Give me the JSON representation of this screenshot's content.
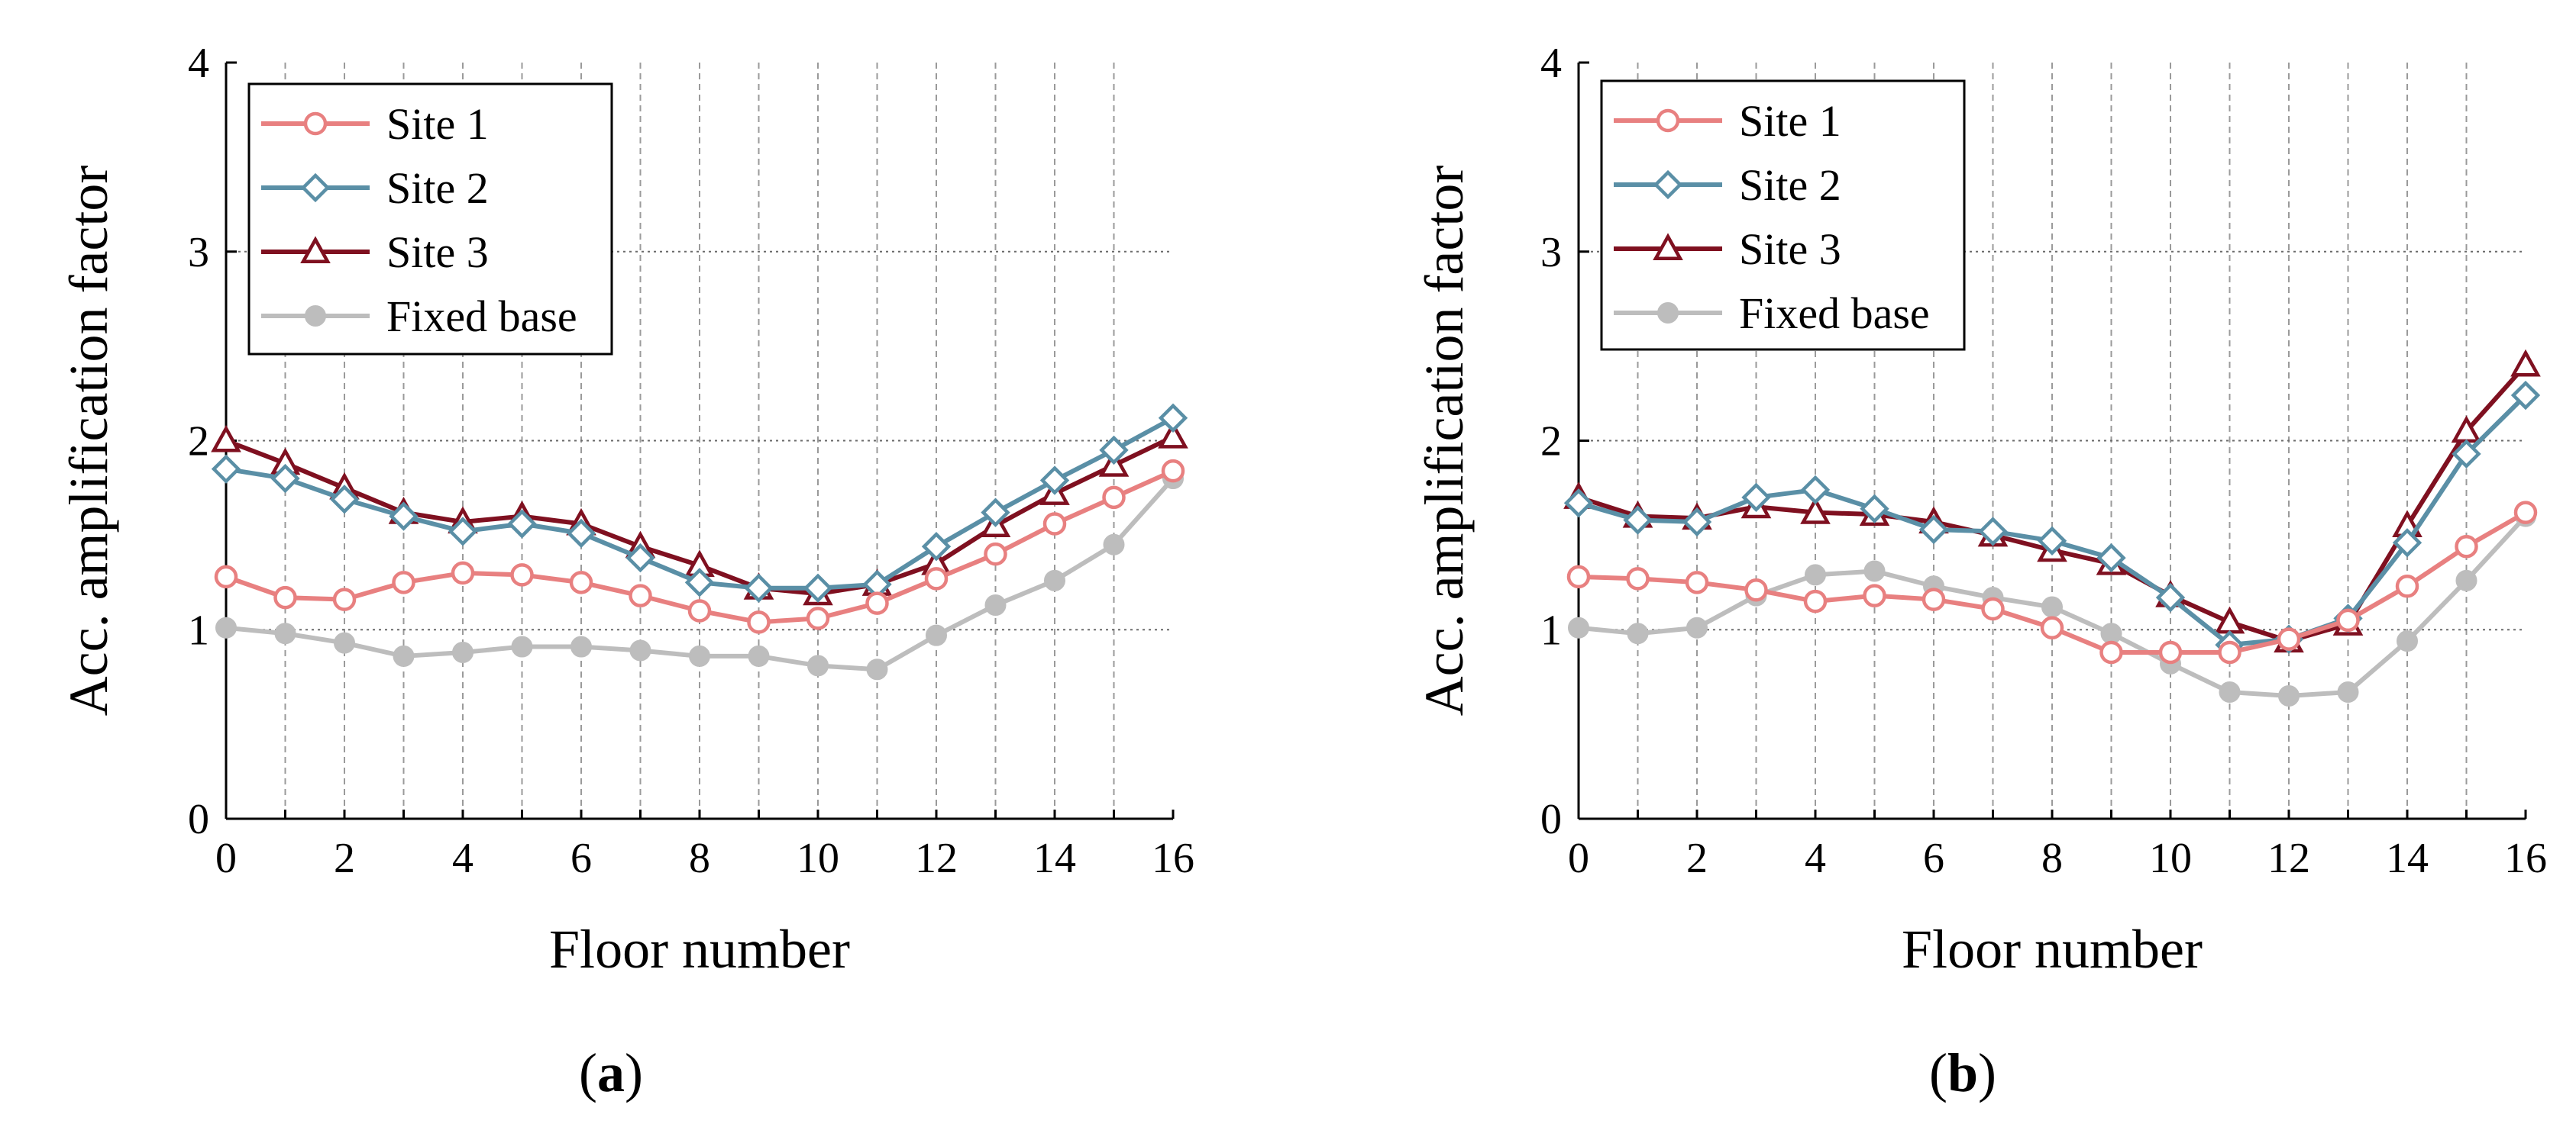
{
  "chart_data": [
    {
      "type": "line",
      "panel_label": "(a)",
      "title": "",
      "xlabel": "Floor number",
      "ylabel": "Acc. amplification factor",
      "xlim": [
        0,
        16
      ],
      "ylim": [
        0,
        4
      ],
      "xticks": [
        0,
        2,
        4,
        6,
        8,
        10,
        12,
        14,
        16
      ],
      "yticks": [
        0,
        1,
        2,
        3,
        4
      ],
      "grid": true,
      "legend_position": "top-left",
      "x": [
        0,
        1,
        2,
        3,
        4,
        5,
        6,
        7,
        8,
        9,
        10,
        11,
        12,
        13,
        14,
        15,
        16
      ],
      "series": [
        {
          "name": "Site 1",
          "color": "#E88080",
          "marker": "circle-open",
          "values": [
            1.28,
            1.17,
            1.16,
            1.25,
            1.3,
            1.29,
            1.25,
            1.18,
            1.1,
            1.04,
            1.06,
            1.14,
            1.27,
            1.4,
            1.56,
            1.7,
            1.84
          ]
        },
        {
          "name": "Site 2",
          "color": "#5A8FA6",
          "marker": "diamond-open",
          "values": [
            1.85,
            1.8,
            1.69,
            1.6,
            1.52,
            1.56,
            1.51,
            1.38,
            1.25,
            1.22,
            1.22,
            1.24,
            1.44,
            1.62,
            1.79,
            1.95,
            2.12
          ]
        },
        {
          "name": "Site 3",
          "color": "#7F1020",
          "marker": "triangle-open",
          "values": [
            2.0,
            1.88,
            1.75,
            1.62,
            1.57,
            1.6,
            1.56,
            1.44,
            1.34,
            1.22,
            1.19,
            1.24,
            1.35,
            1.55,
            1.72,
            1.87,
            2.02
          ]
        },
        {
          "name": "Fixed base",
          "color": "#BDBDBD",
          "marker": "circle-filled",
          "values": [
            1.01,
            0.98,
            0.93,
            0.86,
            0.88,
            0.91,
            0.91,
            0.89,
            0.86,
            0.86,
            0.81,
            0.79,
            0.97,
            1.13,
            1.26,
            1.45,
            1.8
          ]
        }
      ]
    },
    {
      "type": "line",
      "panel_label": "(b)",
      "title": "",
      "xlabel": "Floor number",
      "ylabel": "Acc. amplification factor",
      "xlim": [
        0,
        16
      ],
      "ylim": [
        0,
        4
      ],
      "xticks": [
        0,
        2,
        4,
        6,
        8,
        10,
        12,
        14,
        16
      ],
      "yticks": [
        0,
        1,
        2,
        3,
        4
      ],
      "grid": true,
      "legend_position": "top-left",
      "x": [
        0,
        1,
        2,
        3,
        4,
        5,
        6,
        7,
        8,
        9,
        10,
        11,
        12,
        13,
        14,
        15,
        16
      ],
      "series": [
        {
          "name": "Site 1",
          "color": "#E88080",
          "marker": "circle-open",
          "values": [
            1.28,
            1.27,
            1.25,
            1.21,
            1.15,
            1.18,
            1.16,
            1.11,
            1.01,
            0.88,
            0.88,
            0.88,
            0.95,
            1.05,
            1.23,
            1.44,
            1.62
          ]
        },
        {
          "name": "Site 2",
          "color": "#5A8FA6",
          "marker": "diamond-open",
          "values": [
            1.67,
            1.58,
            1.57,
            1.7,
            1.74,
            1.64,
            1.53,
            1.52,
            1.47,
            1.38,
            1.17,
            0.92,
            0.95,
            1.06,
            1.46,
            1.93,
            2.24
          ]
        },
        {
          "name": "Site 3",
          "color": "#7F1020",
          "marker": "triangle-open",
          "values": [
            1.7,
            1.6,
            1.59,
            1.65,
            1.62,
            1.61,
            1.57,
            1.5,
            1.42,
            1.35,
            1.18,
            1.04,
            0.94,
            1.03,
            1.55,
            2.05,
            2.4
          ]
        },
        {
          "name": "Fixed base",
          "color": "#BDBDBD",
          "marker": "circle-filled",
          "values": [
            1.01,
            0.98,
            1.01,
            1.18,
            1.29,
            1.31,
            1.23,
            1.17,
            1.12,
            0.98,
            0.82,
            0.67,
            0.65,
            0.67,
            0.94,
            1.26,
            1.6
          ]
        }
      ]
    }
  ]
}
